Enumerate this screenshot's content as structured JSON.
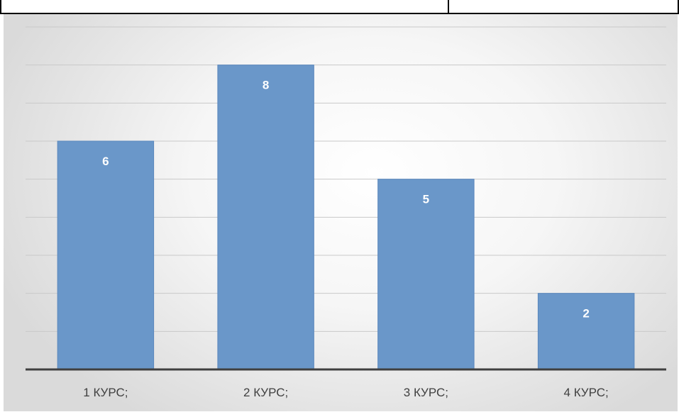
{
  "chart_data": {
    "type": "bar",
    "categories": [
      "1 КУРС;",
      "2 КУРС;",
      "3 КУРС;",
      "4 КУРС;"
    ],
    "values": [
      6,
      8,
      5,
      2
    ],
    "title": "",
    "xlabel": "",
    "ylabel": "",
    "ylim": [
      0,
      9
    ],
    "grid": true,
    "legend": "none",
    "data_labels": true,
    "colors": {
      "bar": "#6a97c9",
      "bar_edge": "#5b88bd",
      "gridline": "#c9c9c9",
      "axis": "#404040",
      "data_label": "#ffffff",
      "tick_label": "#404040"
    }
  }
}
